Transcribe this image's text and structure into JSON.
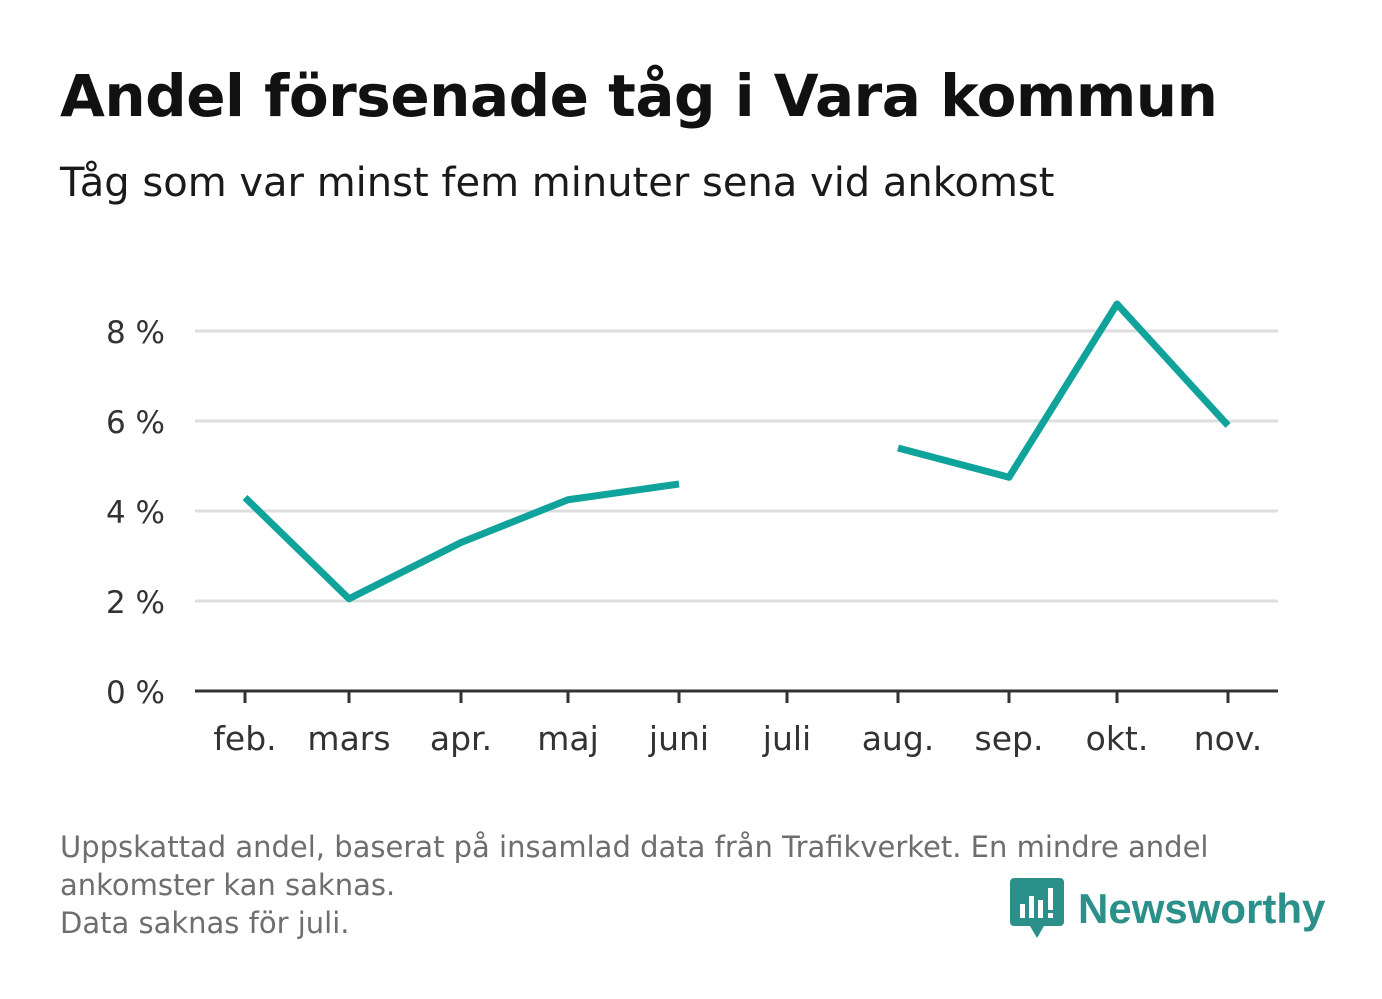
{
  "header": {
    "title": "Andel försenade tåg i Vara kommun",
    "subtitle": "Tåg som var minst fem minuter sena vid ankomst"
  },
  "chart_data": {
    "type": "line",
    "categories": [
      "feb.",
      "mars",
      "apr.",
      "maj",
      "juni",
      "juli",
      "aug.",
      "sep.",
      "okt.",
      "nov."
    ],
    "series": [
      {
        "values": [
          4.3,
          2.05,
          3.3,
          4.25,
          4.6,
          null,
          5.4,
          4.75,
          8.6,
          5.9
        ]
      }
    ],
    "yticks": [
      0,
      2,
      4,
      6,
      8
    ],
    "ytick_labels": [
      "0 %",
      "2 %",
      "4 %",
      "6 %",
      "8 %"
    ],
    "ylim": [
      0,
      8.6
    ],
    "grid": true,
    "line_color": "#0fa39b",
    "grid_color": "#dedede",
    "axis_color": "#333333"
  },
  "footer": {
    "note_lines": [
      "Uppskattad andel, baserat på insamlad data från Trafikverket. En mindre andel",
      "ankomster kan saknas.",
      "Data saknas för juli."
    ],
    "brand": "Newsworthy",
    "brand_color": "#2a9089"
  }
}
